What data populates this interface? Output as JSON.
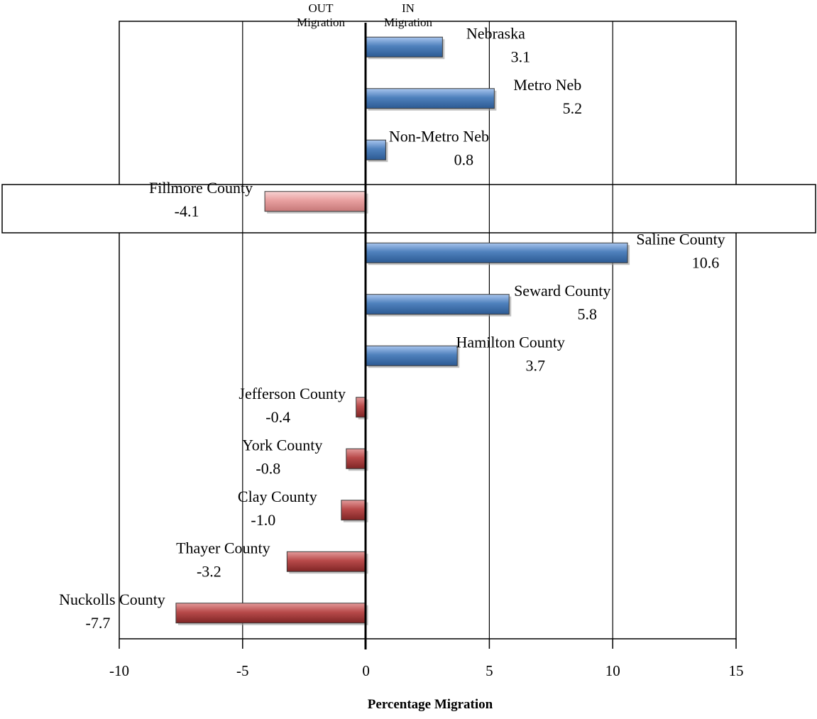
{
  "chart_data": {
    "type": "bar",
    "orientation": "horizontal",
    "title": "",
    "xlabel": "Percentage Migration",
    "ylabel": "",
    "out_label_line1": "OUT",
    "out_label_line2": "Migration",
    "in_label_line1": "IN",
    "in_label_line2": "Migration",
    "xlim": [
      -10,
      15
    ],
    "xticks": [
      -10,
      -5,
      0,
      5,
      10,
      15
    ],
    "grid": true,
    "legend": "none",
    "highlight_category": "Fillmore County",
    "colors": {
      "positive": "#4f81bd",
      "negative": "#b84a4a",
      "highlight": "#e8a0a0"
    },
    "bars": [
      {
        "category": "Nebraska",
        "value": 3.1,
        "label": "3.1"
      },
      {
        "category": "Metro Neb",
        "value": 5.2,
        "label": "5.2"
      },
      {
        "category": "Non-Metro Neb",
        "value": 0.8,
        "label": "0.8"
      },
      {
        "category": "Fillmore County",
        "value": -4.1,
        "label": "-4.1"
      },
      {
        "category": "Saline County",
        "value": 10.6,
        "label": "10.6"
      },
      {
        "category": "Seward County",
        "value": 5.8,
        "label": "5.8"
      },
      {
        "category": "Hamilton County",
        "value": 3.7,
        "label": "3.7"
      },
      {
        "category": "Jefferson County",
        "value": -0.4,
        "label": "-0.4"
      },
      {
        "category": "York County",
        "value": -0.8,
        "label": "-0.8"
      },
      {
        "category": "Clay County",
        "value": -1.0,
        "label": "-1.0"
      },
      {
        "category": "Thayer County",
        "value": -3.2,
        "label": "-3.2"
      },
      {
        "category": "Nuckolls County",
        "value": -7.7,
        "label": "-7.7"
      }
    ]
  }
}
